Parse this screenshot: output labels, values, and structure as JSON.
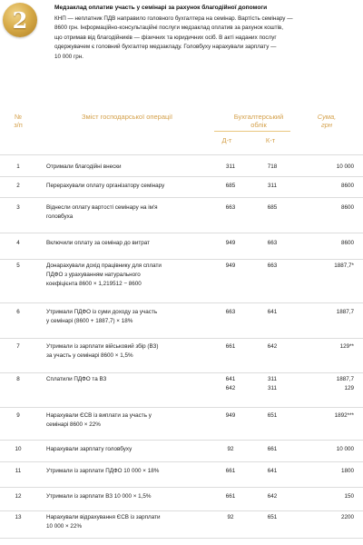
{
  "badge": {
    "number": "2"
  },
  "case_title": "Медзаклад оплатив участь у семінарі за рахунок благодійної допомоги",
  "case_text": [
    "КНП — неплатник ПДВ направило головного бухгалтера на семінар. Вартість семінару —",
    "8600 грн. Інформаційно-консультаційні послуги медзаклад оплатив за рахунок коштів,",
    "що отримав від благодійників — фізичних та юридичних осіб. В акті наданих послуг",
    "одержувачем є головний бухгалтер медзакладу. Головбуху нарахували зарплату —",
    "10 000 грн."
  ],
  "table": {
    "header": {
      "num": [
        "№",
        "з/п"
      ],
      "operation": "Зміст господарської операції",
      "accounting": [
        "Бухгалтерський",
        "облік"
      ],
      "debit": "Д-т",
      "credit": "К-т",
      "sum": [
        "Сума,",
        "грн"
      ]
    },
    "rows": [
      {
        "num": "1",
        "op": [
          "Отримали благодійні внески"
        ],
        "dt": [
          "311"
        ],
        "kt": [
          "718"
        ],
        "sum": [
          "10 000"
        ]
      },
      {
        "num": "2",
        "op": [
          "Перерахували оплату організатору семінару"
        ],
        "dt": [
          "685"
        ],
        "kt": [
          "311"
        ],
        "sum": [
          "8600"
        ]
      },
      {
        "num": "3",
        "op": [
          "Віднесли оплату вартості семінару на ім'я",
          "головбуха"
        ],
        "dt": [
          "663"
        ],
        "kt": [
          "685"
        ],
        "sum": [
          "8600"
        ]
      },
      {
        "num": "4",
        "op": [
          "Включили оплату за семінар до витрат"
        ],
        "dt": [
          "949"
        ],
        "kt": [
          "663"
        ],
        "sum": [
          "8600"
        ]
      },
      {
        "num": "5",
        "op": [
          "Донарахували дохід працівнику для сплати",
          "ПДФО з урахуванням натурального",
          "коефіцієнта 8600 × 1,219512 − 8600"
        ],
        "dt": [
          "949"
        ],
        "kt": [
          "663"
        ],
        "sum": [
          "1887,7*"
        ]
      },
      {
        "num": "6",
        "op": [
          "Утримали ПДФО із суми доходу за участь",
          "у семінарі (8600 + 1887,7) × 18%"
        ],
        "dt": [
          "663"
        ],
        "kt": [
          "641"
        ],
        "sum": [
          "1887,7"
        ]
      },
      {
        "num": "7",
        "op": [
          "Утримали із зарплати військовий збір (ВЗ)",
          "за участь у семінарі 8600 × 1,5%"
        ],
        "dt": [
          "661"
        ],
        "kt": [
          "642"
        ],
        "sum": [
          "129**"
        ]
      },
      {
        "num": "8",
        "op": [
          "Сплатили ПДФО та ВЗ"
        ],
        "dt": [
          "641",
          "642"
        ],
        "kt": [
          "311",
          "311"
        ],
        "sum": [
          "1887,7",
          "129"
        ]
      },
      {
        "num": "9",
        "op": [
          "Нарахували ЄСВ із виплати за участь у",
          "семінарі 8600 × 22%"
        ],
        "dt": [
          "949"
        ],
        "kt": [
          "651"
        ],
        "sum": [
          "1892***"
        ]
      },
      {
        "num": "10",
        "op": [
          "Нарахували зарплату головбуху"
        ],
        "dt": [
          "92"
        ],
        "kt": [
          "661"
        ],
        "sum": [
          "10 000"
        ]
      },
      {
        "num": "11",
        "op": [
          "Утримали із зарплати ПДФО 10 000 × 18%"
        ],
        "dt": [
          "661"
        ],
        "kt": [
          "641"
        ],
        "sum": [
          "1800"
        ]
      },
      {
        "num": "12",
        "op": [
          "Утримали із зарплати ВЗ 10 000 × 1,5%"
        ],
        "dt": [
          "661"
        ],
        "kt": [
          "642"
        ],
        "sum": [
          "150"
        ]
      },
      {
        "num": "13",
        "op": [
          "Нарахували відрахування ЄСВ із зарплати",
          "10 000 × 22%"
        ],
        "dt": [
          "92"
        ],
        "kt": [
          "651"
        ],
        "sum": [
          "2200"
        ]
      }
    ]
  },
  "colors": {
    "accent": "#d4a04a",
    "badge": "#c9963a",
    "rule": "#dcdcdc"
  }
}
